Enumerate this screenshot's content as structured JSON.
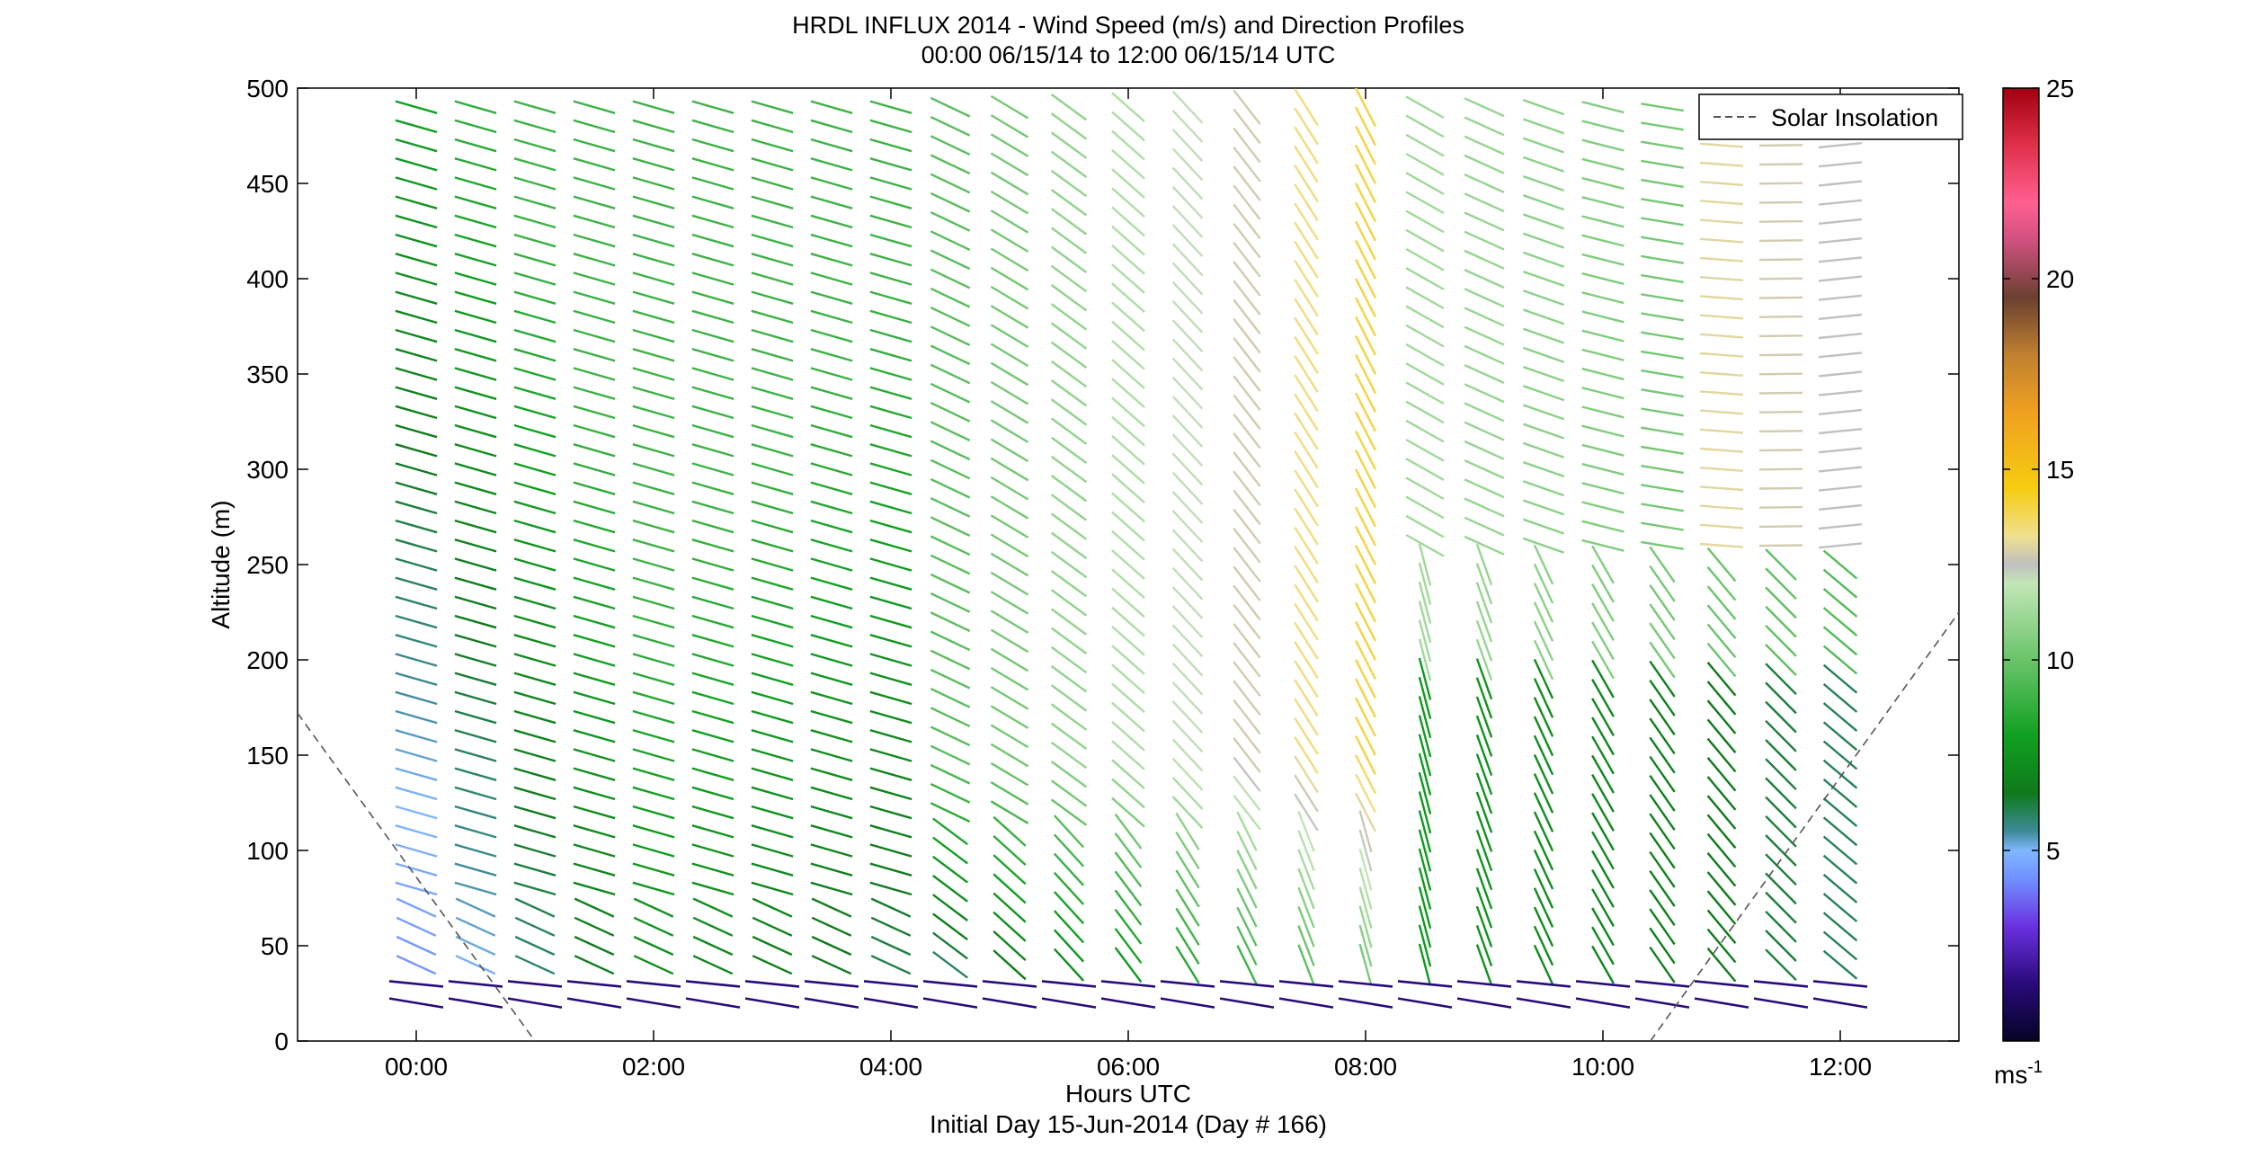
{
  "chart_data": {
    "type": "wind-profile",
    "title": "HRDL INFLUX 2014 - Wind Speed (m/s) and Direction Profiles",
    "subtitle": "00:00 06/15/14 to 12:00 06/15/14  UTC",
    "xlabel": "Hours UTC",
    "xlabel2": "Initial Day 15-Jun-2014 (Day # 166)",
    "ylabel": "Altitude (m)",
    "xlim": [
      -1,
      13
    ],
    "ylim": [
      0,
      500
    ],
    "x_ticks": [
      0,
      2,
      4,
      6,
      8,
      10,
      12
    ],
    "x_tick_labels": [
      "00:00",
      "02:00",
      "04:00",
      "06:00",
      "08:00",
      "10:00",
      "12:00"
    ],
    "y_ticks": [
      0,
      50,
      100,
      150,
      200,
      250,
      300,
      350,
      400,
      450,
      500
    ],
    "y_tick_labels": [
      "0",
      "50",
      "100",
      "150",
      "200",
      "250",
      "300",
      "350",
      "400",
      "450",
      "500"
    ],
    "colorbar": {
      "range": [
        0,
        25
      ],
      "ticks": [
        5,
        10,
        15,
        20,
        25
      ],
      "tick_labels": [
        "5",
        "10",
        "15",
        "20",
        "25"
      ],
      "unit_label": "ms",
      "unit_exponent": "-1"
    },
    "legend": {
      "position": "top-right",
      "entries": [
        "Solar Insolation"
      ]
    },
    "solar_insolation": {
      "style": "dashed",
      "color": "#555555",
      "segments": [
        {
          "x": [
            -1.0,
            1.0
          ],
          "y": [
            172,
            0
          ]
        },
        {
          "x": [
            10.4,
            13.0
          ],
          "y": [
            0,
            225
          ]
        }
      ]
    },
    "wind_grid": {
      "times": [
        0,
        0.5,
        1,
        1.5,
        2,
        2.5,
        3,
        3.5,
        4,
        4.5,
        5,
        5.5,
        6,
        6.5,
        7,
        7.5,
        8,
        8.5,
        9,
        9.5,
        10,
        10.5,
        11,
        11.5,
        12
      ],
      "altitudes": [
        20,
        30,
        40,
        50,
        60,
        70,
        80,
        90,
        100,
        110,
        120,
        130,
        140,
        150,
        160,
        170,
        180,
        190,
        200,
        210,
        220,
        230,
        240,
        250,
        260,
        270,
        280,
        290,
        300,
        310,
        320,
        330,
        340,
        350,
        360,
        370,
        380,
        390,
        400,
        410,
        420,
        430,
        440,
        450,
        460,
        470,
        480,
        490
      ],
      "speed_rule": "speed in m/s from colorbar; direction as drawn",
      "notes": "grid values are schematic reconstruction of the vector field"
    },
    "surface_layer": {
      "altitudes": [
        20,
        30
      ],
      "speed": 1.5
    }
  }
}
